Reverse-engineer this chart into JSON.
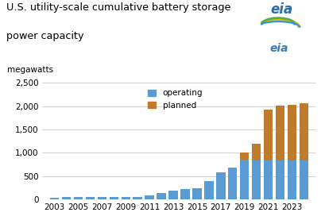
{
  "title_line1": "U.S. utility-scale cumulative battery storage",
  "title_line2": "power capacity",
  "ylabel": "megawatts",
  "years": [
    2003,
    2004,
    2005,
    2006,
    2007,
    2008,
    2009,
    2010,
    2011,
    2012,
    2013,
    2014,
    2015,
    2016,
    2017,
    2018,
    2019,
    2020,
    2021,
    2022,
    2023,
    2024
  ],
  "operating": [
    35,
    45,
    50,
    50,
    45,
    45,
    45,
    55,
    90,
    140,
    185,
    225,
    245,
    385,
    580,
    680,
    860,
    830,
    830,
    830,
    830,
    830
  ],
  "planned": [
    0,
    0,
    0,
    0,
    0,
    0,
    0,
    0,
    0,
    0,
    0,
    0,
    0,
    0,
    0,
    0,
    140,
    370,
    1100,
    1180,
    1190,
    1240
  ],
  "operating_color": "#5B9BD5",
  "planned_color": "#C07A2B",
  "background_color": "#FFFFFF",
  "ylim": [
    0,
    2500
  ],
  "yticks": [
    0,
    500,
    1000,
    1500,
    2000,
    2500
  ],
  "xtick_labels": [
    "2003",
    "2005",
    "2007",
    "2009",
    "2011",
    "2013",
    "2015",
    "2017",
    "2019",
    "2021",
    "2023"
  ],
  "xtick_positions": [
    2003,
    2005,
    2007,
    2009,
    2011,
    2013,
    2015,
    2017,
    2019,
    2021,
    2023
  ],
  "legend_operating": "operating",
  "legend_planned": "planned",
  "eia_logo_text": "eia"
}
